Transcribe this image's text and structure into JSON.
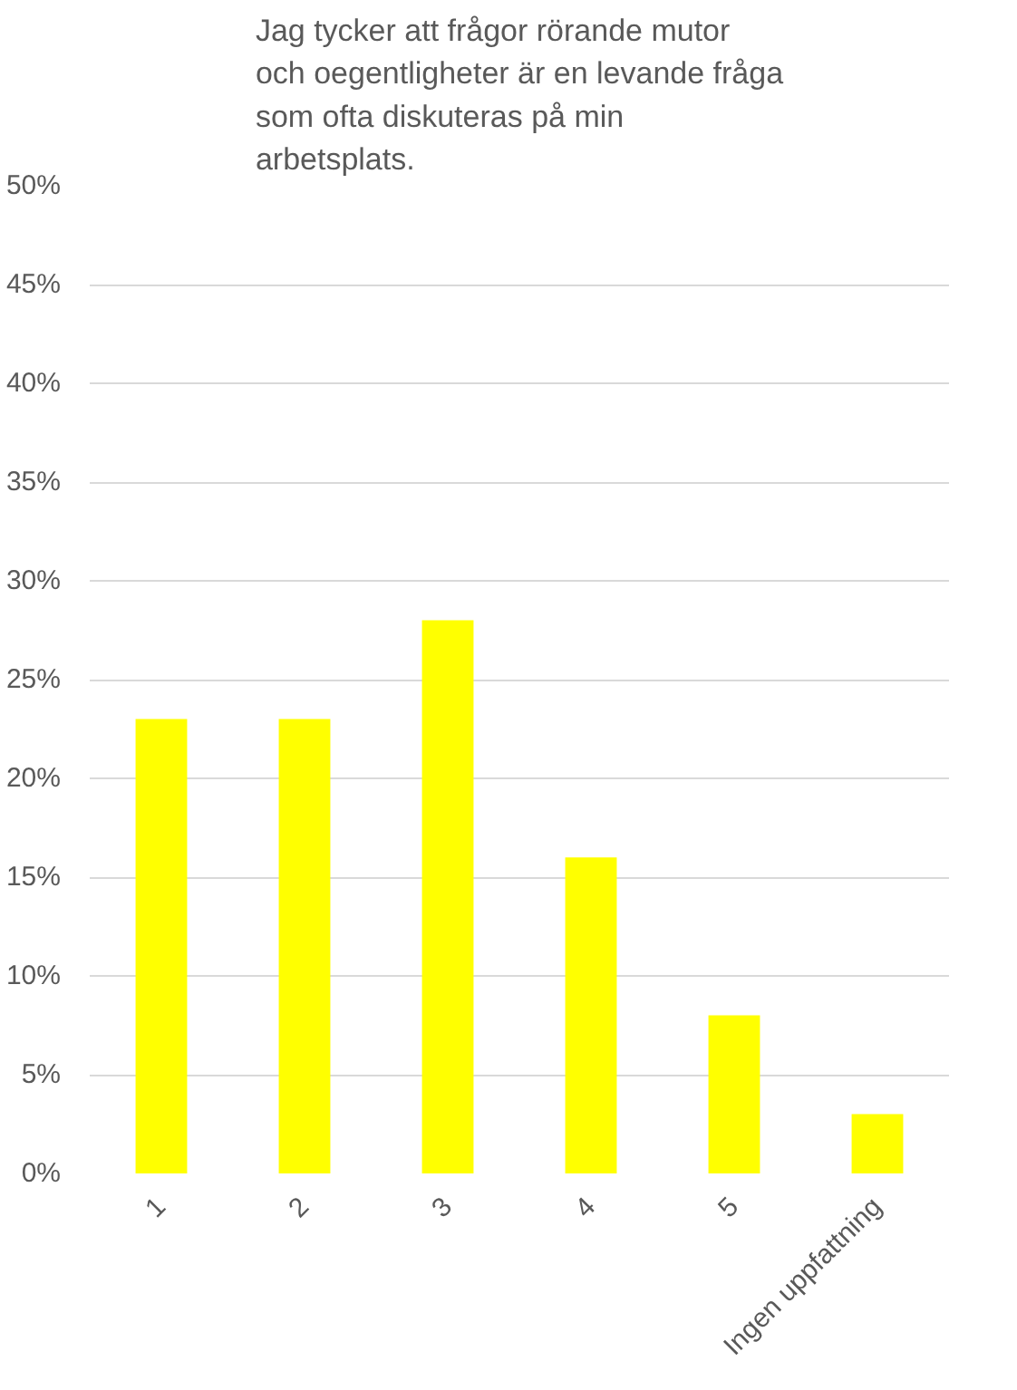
{
  "chart_data": {
    "type": "bar",
    "title": "Jag tycker att frågor rörande mutor och oegentligheter är en levande fråga som ofta diskuteras på min arbetsplats.",
    "categories": [
      "1",
      "2",
      "3",
      "4",
      "5",
      "Ingen uppfattning"
    ],
    "values": [
      23,
      23,
      28,
      16,
      8,
      3
    ],
    "color": "#ffff00",
    "ylim": [
      0,
      50
    ],
    "yticks": [
      {
        "value": 0,
        "label": "0%"
      },
      {
        "value": 5,
        "label": "5%"
      },
      {
        "value": 10,
        "label": "10%"
      },
      {
        "value": 15,
        "label": "15%"
      },
      {
        "value": 20,
        "label": "20%"
      },
      {
        "value": 25,
        "label": "25%"
      },
      {
        "value": 30,
        "label": "30%"
      },
      {
        "value": 35,
        "label": "35%"
      },
      {
        "value": 40,
        "label": "40%"
      },
      {
        "value": 45,
        "label": "45%"
      },
      {
        "value": 50,
        "label": "50%"
      }
    ],
    "grid": "y"
  }
}
